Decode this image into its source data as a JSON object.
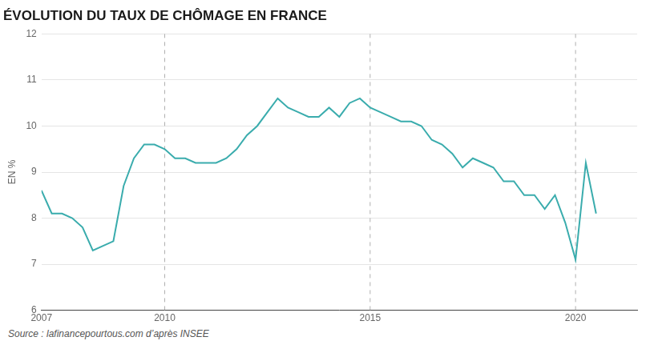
{
  "chart_data": {
    "type": "line",
    "title": "ÉVOLUTION DU TAUX DE CHÔMAGE EN FRANCE",
    "ylabel": "EN %",
    "annotations": [
      "Source : lafinancepourtous.com d’après INSEE"
    ],
    "color": "#3aacad",
    "x": [
      2007.0,
      2007.25,
      2007.5,
      2007.75,
      2008.0,
      2008.25,
      2008.5,
      2008.75,
      2009.0,
      2009.25,
      2009.5,
      2009.75,
      2010.0,
      2010.25,
      2010.5,
      2010.75,
      2011.0,
      2011.25,
      2011.5,
      2011.75,
      2012.0,
      2012.25,
      2012.5,
      2012.75,
      2013.0,
      2013.25,
      2013.5,
      2013.75,
      2014.0,
      2014.25,
      2014.5,
      2014.75,
      2015.0,
      2015.25,
      2015.5,
      2015.75,
      2016.0,
      2016.25,
      2016.5,
      2016.75,
      2017.0,
      2017.25,
      2017.5,
      2017.75,
      2018.0,
      2018.25,
      2018.5,
      2018.75,
      2019.0,
      2019.25,
      2019.5,
      2019.75,
      2020.0,
      2020.25,
      2020.5
    ],
    "values": [
      8.6,
      8.1,
      8.1,
      8.0,
      7.8,
      7.3,
      7.4,
      7.5,
      8.7,
      9.3,
      9.6,
      9.6,
      9.5,
      9.3,
      9.3,
      9.2,
      9.2,
      9.2,
      9.3,
      9.5,
      9.8,
      10.0,
      10.3,
      10.6,
      10.4,
      10.3,
      10.2,
      10.2,
      10.4,
      10.2,
      10.5,
      10.6,
      10.4,
      10.3,
      10.2,
      10.1,
      10.1,
      10.0,
      9.7,
      9.6,
      9.4,
      9.1,
      9.3,
      9.2,
      9.1,
      8.8,
      8.8,
      8.5,
      8.5,
      8.2,
      8.5,
      7.9,
      7.1,
      9.2,
      8.1
    ],
    "vlines": [
      2010,
      2015,
      2020
    ],
    "xlim": [
      2007,
      2021.5
    ],
    "xticks": [
      2007,
      2010,
      2015,
      2020
    ],
    "ylim": [
      6,
      12
    ],
    "yticks": [
      6,
      7,
      8,
      9,
      10,
      11,
      12
    ],
    "grid": "y",
    "line_style": "solid",
    "marker": "none"
  }
}
